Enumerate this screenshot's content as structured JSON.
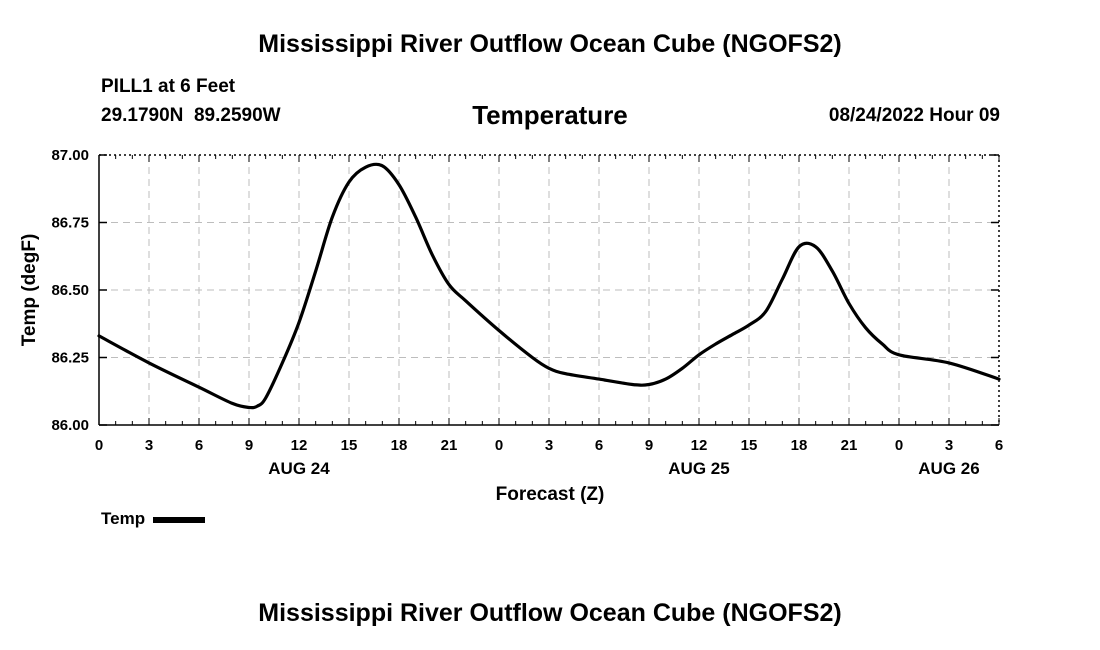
{
  "header": {
    "title": "Mississippi River Outflow Ocean Cube (NGOFS2)",
    "station": "PILL1 at 6 Feet",
    "lat": "29.1790N",
    "lon": "89.2590W",
    "datetime": "08/24/2022 Hour 09"
  },
  "footer": {
    "title": "Mississippi River Outflow Ocean Cube (NGOFS2)"
  },
  "legend": {
    "label": "Temp"
  },
  "chart_data": {
    "type": "line",
    "title": "Temperature",
    "xlabel": "Forecast (Z)",
    "ylabel": "Temp (degF)",
    "xlim": [
      0,
      54
    ],
    "ylim": [
      86.0,
      87.0
    ],
    "grid": true,
    "legend_position": "bottom-left",
    "x_ticks": [
      0,
      3,
      6,
      9,
      12,
      15,
      18,
      21,
      24,
      27,
      30,
      33,
      36,
      39,
      42,
      45,
      48,
      51,
      54
    ],
    "x_tick_labels": [
      "0",
      "3",
      "6",
      "9",
      "12",
      "15",
      "18",
      "21",
      "0",
      "3",
      "6",
      "9",
      "12",
      "15",
      "18",
      "21",
      "0",
      "3",
      "6"
    ],
    "date_labels": [
      {
        "x": 12,
        "label": "AUG 24"
      },
      {
        "x": 36,
        "label": "AUG 25"
      },
      {
        "x": 51,
        "label": "AUG 26"
      }
    ],
    "y_ticks": [
      86.0,
      86.25,
      86.5,
      86.75,
      87.0
    ],
    "y_tick_labels": [
      "86.00",
      "86.25",
      "86.50",
      "86.75",
      "87.00"
    ],
    "series": [
      {
        "name": "Temp",
        "color": "#000000",
        "x": [
          0,
          3,
          6,
          8,
          9,
          9.5,
          10,
          11,
          12,
          13,
          14,
          15,
          16,
          17,
          18,
          19,
          20,
          21,
          22,
          24,
          26,
          27,
          28,
          30,
          32,
          33,
          34,
          35,
          36,
          37,
          38,
          39,
          40,
          41,
          42,
          43,
          44,
          45,
          46,
          47,
          48,
          51,
          54
        ],
        "y": [
          86.33,
          86.23,
          86.14,
          86.08,
          86.065,
          86.07,
          86.1,
          86.23,
          86.38,
          86.57,
          86.77,
          86.9,
          86.955,
          86.96,
          86.89,
          86.77,
          86.63,
          86.52,
          86.46,
          86.35,
          86.25,
          86.21,
          86.19,
          86.17,
          86.15,
          86.15,
          86.17,
          86.21,
          86.26,
          86.3,
          86.335,
          86.37,
          86.42,
          86.54,
          86.66,
          86.66,
          86.57,
          86.45,
          86.36,
          86.3,
          86.26,
          86.23,
          86.17
        ]
      }
    ]
  }
}
